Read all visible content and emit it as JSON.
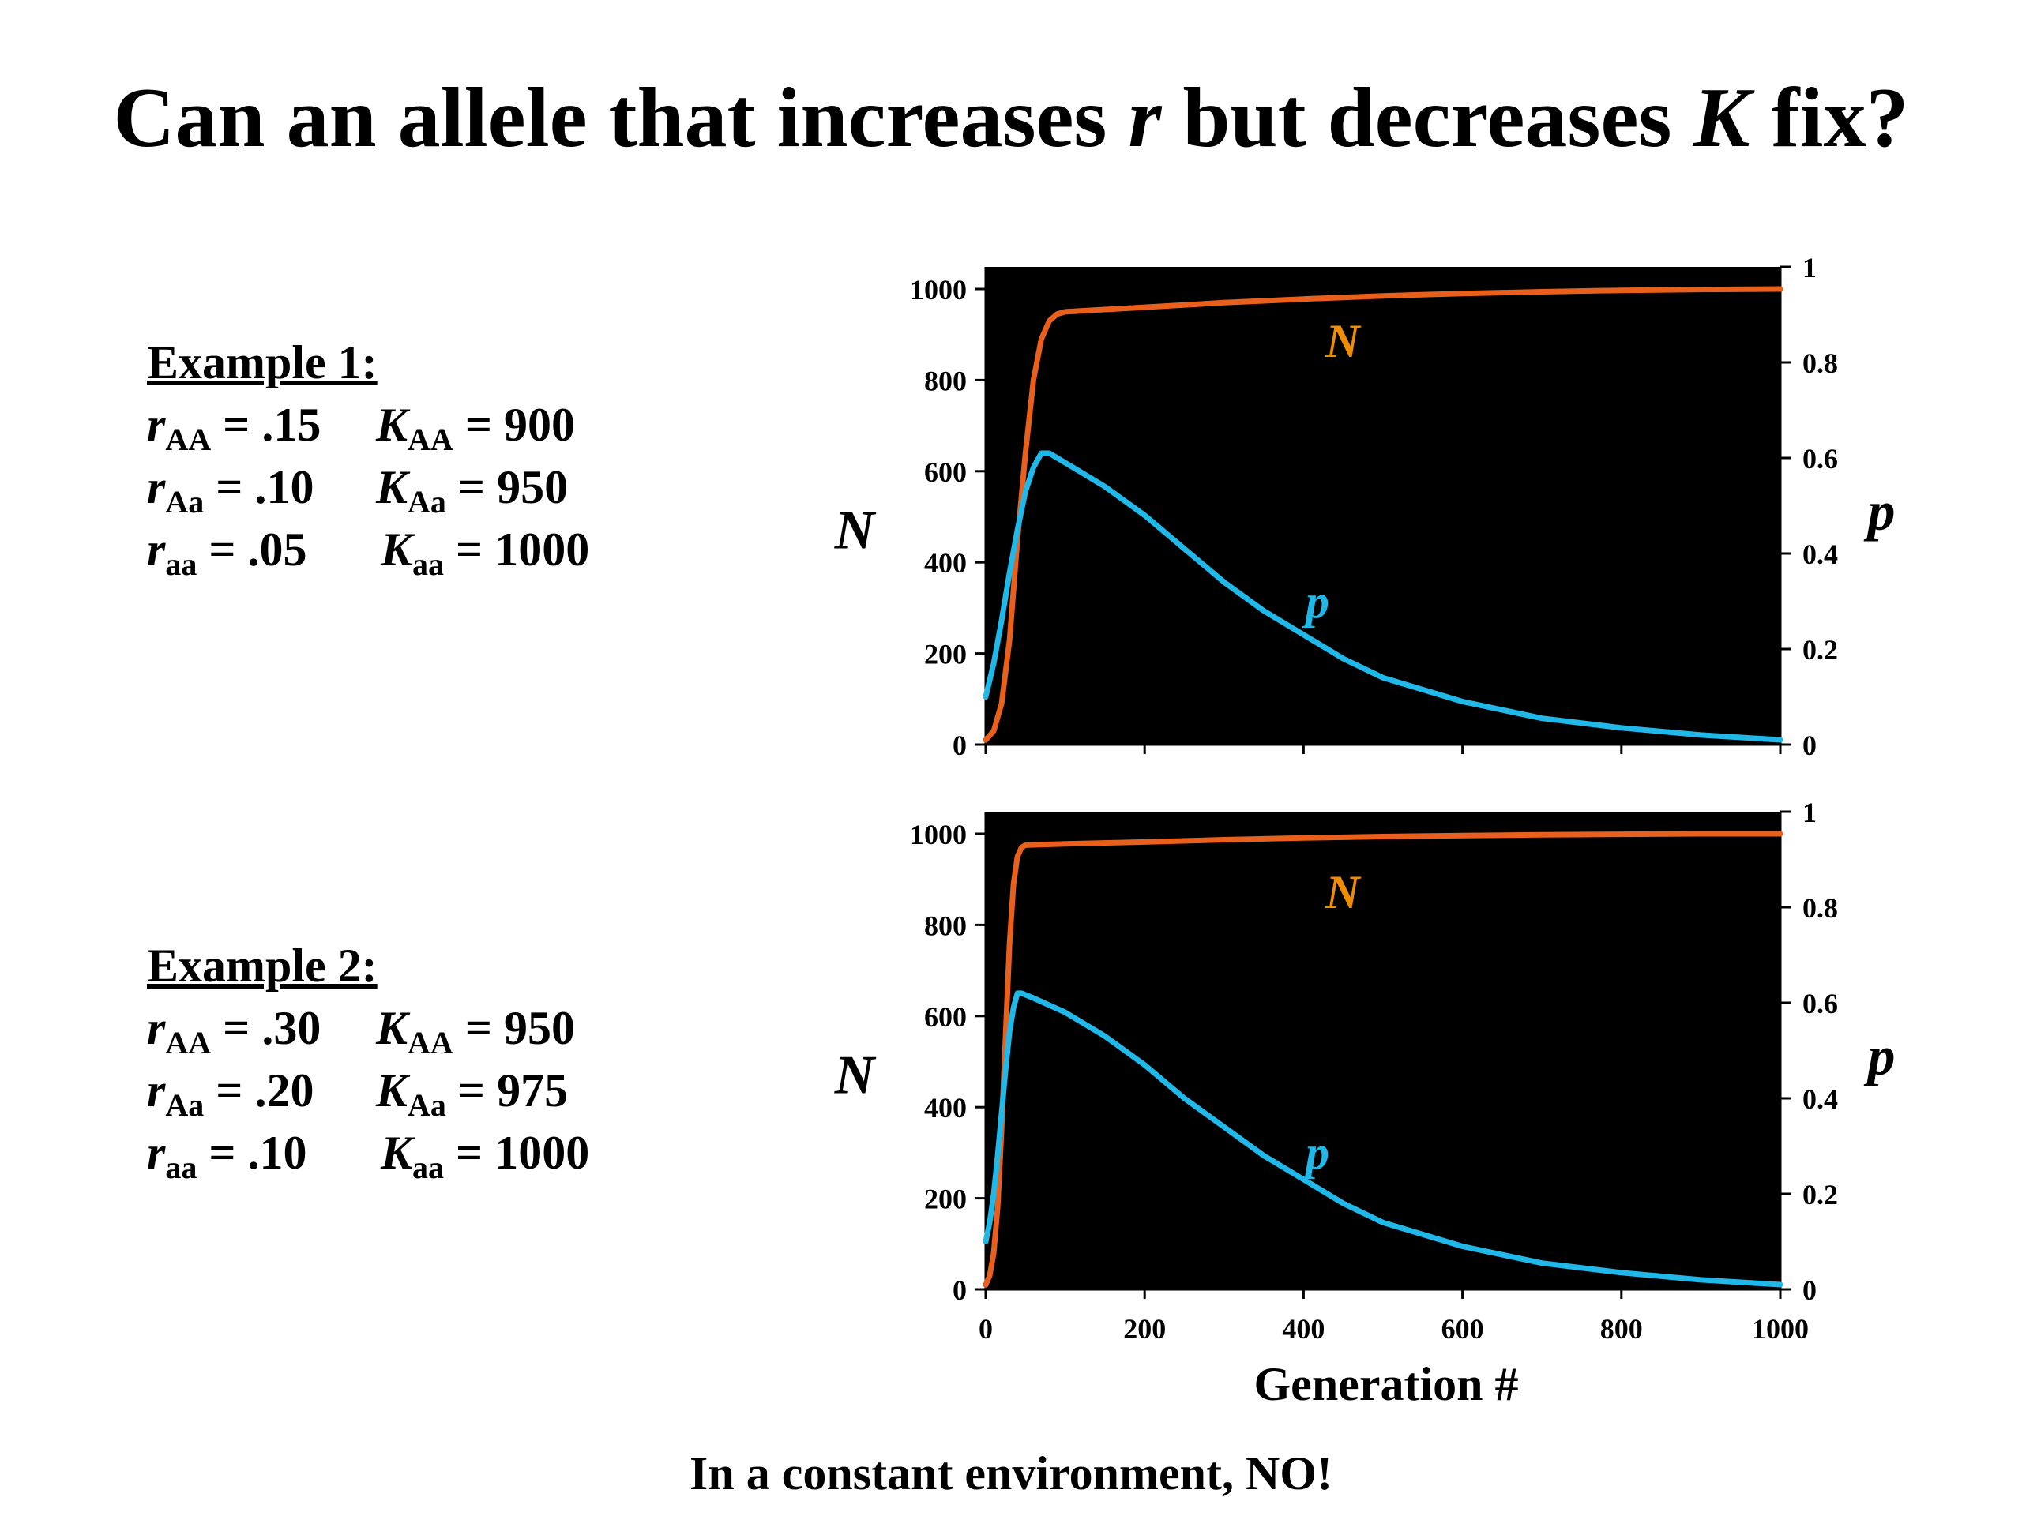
{
  "title": {
    "pre": "Can an allele that increases ",
    "r": "r",
    "mid": " but decreases ",
    "K": "K",
    "post": " fix?"
  },
  "examples": [
    {
      "heading": "Example 1:",
      "rows": [
        {
          "r": "r",
          "sub1": "AA",
          "rval": " = .15",
          "k": "K",
          "sub2": "AA",
          "kval": " = 900"
        },
        {
          "r": "r",
          "sub1": "Aa",
          "rval": " = .10",
          "k": "K",
          "sub2": "Aa",
          "kval": " = 950"
        },
        {
          "r": "r",
          "sub1": "aa",
          "rval": " = .05",
          "k": "K",
          "sub2": "aa",
          "kval": " = 1000"
        }
      ]
    },
    {
      "heading": "Example 2:",
      "rows": [
        {
          "r": "r",
          "sub1": "AA",
          "rval": " = .30",
          "k": "K",
          "sub2": "AA",
          "kval": " = 950"
        },
        {
          "r": "r",
          "sub1": "Aa",
          "rval": " = .20",
          "k": "K",
          "sub2": "Aa",
          "kval": " = 975"
        },
        {
          "r": "r",
          "sub1": "aa",
          "rval": " = .10",
          "k": "K",
          "sub2": "aa",
          "kval": " = 1000"
        }
      ]
    }
  ],
  "footer": "In a constant environment, NO!",
  "colors": {
    "N": "#e8601c",
    "p": "#1fb8e8",
    "N_label": "#f08c00",
    "background": "#000000"
  },
  "chart_data": [
    {
      "type": "line",
      "title": "",
      "xlabel": "",
      "ylabel_left": "N",
      "ylabel_right": "p",
      "xlim": [
        0,
        1000
      ],
      "ylim_left": [
        0,
        1000
      ],
      "ylim_right": [
        0,
        1
      ],
      "yticks_left": [
        "0",
        "200",
        "400",
        "600",
        "800",
        "1000"
      ],
      "yticks_right": [
        "0",
        "0.2",
        "0.4",
        "0.6",
        "0.8",
        "1"
      ],
      "xticks": [],
      "series": [
        {
          "name": "N",
          "axis": "left",
          "x": [
            0,
            10,
            20,
            30,
            40,
            50,
            60,
            70,
            80,
            90,
            100,
            150,
            200,
            300,
            400,
            500,
            600,
            700,
            800,
            900,
            1000
          ],
          "y": [
            10,
            30,
            90,
            230,
            450,
            640,
            800,
            890,
            930,
            945,
            950,
            955,
            960,
            970,
            978,
            985,
            990,
            994,
            997,
            999,
            1000
          ]
        },
        {
          "name": "p",
          "axis": "right",
          "x": [
            0,
            10,
            20,
            30,
            40,
            50,
            60,
            70,
            80,
            100,
            150,
            200,
            250,
            300,
            350,
            400,
            450,
            500,
            600,
            700,
            800,
            900,
            1000
          ],
          "y": [
            0.1,
            0.17,
            0.26,
            0.36,
            0.45,
            0.53,
            0.58,
            0.61,
            0.61,
            0.59,
            0.54,
            0.48,
            0.41,
            0.34,
            0.28,
            0.23,
            0.18,
            0.14,
            0.09,
            0.055,
            0.035,
            0.02,
            0.01
          ]
        }
      ]
    },
    {
      "type": "line",
      "title": "",
      "xlabel": "Generation #",
      "ylabel_left": "N",
      "ylabel_right": "p",
      "xlim": [
        0,
        1000
      ],
      "ylim_left": [
        0,
        1000
      ],
      "ylim_right": [
        0,
        1
      ],
      "yticks_left": [
        "0",
        "200",
        "400",
        "600",
        "800",
        "1000"
      ],
      "yticks_right": [
        "0",
        "0.2",
        "0.4",
        "0.6",
        "0.8",
        "1"
      ],
      "xticks": [
        "0",
        "200",
        "400",
        "600",
        "800",
        "1000"
      ],
      "series": [
        {
          "name": "N",
          "axis": "left",
          "x": [
            0,
            5,
            10,
            15,
            20,
            25,
            30,
            35,
            40,
            45,
            50,
            100,
            200,
            300,
            400,
            500,
            600,
            700,
            800,
            900,
            1000
          ],
          "y": [
            10,
            30,
            80,
            180,
            350,
            560,
            760,
            890,
            950,
            970,
            975,
            978,
            982,
            987,
            991,
            994,
            996,
            998,
            999,
            1000,
            1000
          ]
        },
        {
          "name": "p",
          "axis": "right",
          "x": [
            0,
            5,
            10,
            15,
            20,
            25,
            30,
            35,
            40,
            45,
            60,
            100,
            150,
            200,
            250,
            300,
            350,
            400,
            450,
            500,
            600,
            700,
            800,
            900,
            1000
          ],
          "y": [
            0.1,
            0.14,
            0.2,
            0.28,
            0.37,
            0.46,
            0.54,
            0.59,
            0.62,
            0.62,
            0.61,
            0.58,
            0.53,
            0.47,
            0.4,
            0.34,
            0.28,
            0.23,
            0.18,
            0.14,
            0.09,
            0.055,
            0.035,
            0.02,
            0.01
          ]
        }
      ]
    }
  ]
}
